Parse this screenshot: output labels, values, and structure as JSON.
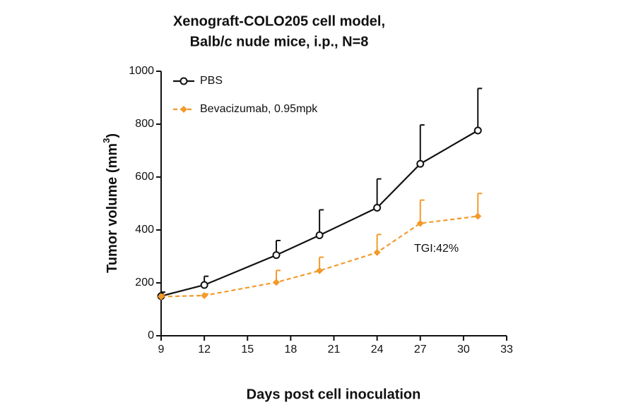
{
  "chart_data": {
    "type": "line",
    "title": [
      "Xenograft-COLO205 cell model,",
      "Balb/c nude mice, i.p., N=8"
    ],
    "xlabel": "Days post cell inoculation",
    "ylabel": {
      "text": "Tumor volume (mm",
      "superscript": "3",
      "suffix": ")"
    },
    "x": [
      9,
      12,
      17,
      20,
      24,
      27,
      31
    ],
    "series": [
      {
        "name": "PBS",
        "color": "#111111",
        "marker": "circle",
        "dash": false,
        "values": [
          150,
          192,
          305,
          380,
          484,
          650,
          776
        ],
        "errors": [
          15,
          33,
          55,
          96,
          109,
          147,
          159
        ]
      },
      {
        "name": "Bevacizumab, 0.95mpk",
        "color": "#f39a2b",
        "marker": "diamond",
        "dash": true,
        "values": [
          148,
          152,
          202,
          246,
          315,
          425,
          452
        ],
        "errors": [
          8,
          6,
          45,
          51,
          68,
          88,
          86
        ]
      }
    ],
    "annotation": "TGI:42%",
    "xlim": [
      9,
      33
    ],
    "xticks": [
      9,
      12,
      15,
      18,
      21,
      24,
      27,
      30,
      33
    ],
    "ylim": [
      0,
      1000
    ],
    "yticks": [
      0,
      200,
      400,
      600,
      800,
      1000
    ],
    "legend": "top-left"
  }
}
